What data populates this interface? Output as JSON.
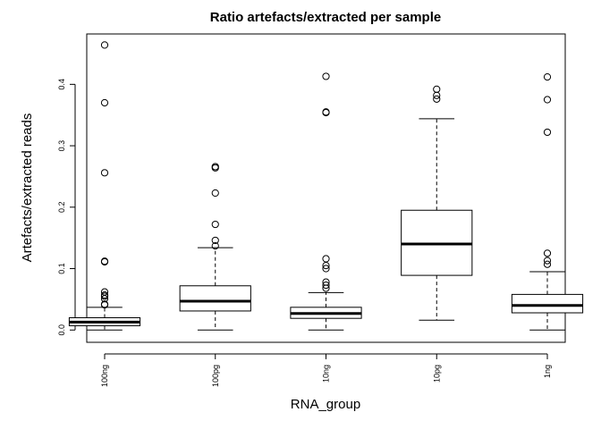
{
  "chart_data": {
    "type": "boxplot",
    "title": "Ratio artefacts/extracted per sample",
    "xlabel": "RNA_group",
    "ylabel": "Artefacts/extracted reads",
    "ylim": [
      -0.02,
      0.482
    ],
    "yticks": [
      0.0,
      0.1,
      0.2,
      0.3,
      0.4
    ],
    "ytick_labels": [
      "0.0",
      "0.1",
      "0.2",
      "0.3",
      "0.4"
    ],
    "categories": [
      "100ng",
      "100pg",
      "10ng",
      "10pg",
      "1ng"
    ],
    "boxes": [
      {
        "whisker_low": 0.0,
        "q1": 0.007,
        "median": 0.013,
        "q3": 0.02,
        "whisker_high": 0.037,
        "outliers": [
          0.041,
          0.042,
          0.051,
          0.055,
          0.057,
          0.062,
          0.111,
          0.112,
          0.256,
          0.37,
          0.464
        ]
      },
      {
        "whisker_low": 0.0,
        "q1": 0.031,
        "median": 0.047,
        "q3": 0.072,
        "whisker_high": 0.134,
        "outliers": [
          0.137,
          0.146,
          0.172,
          0.223,
          0.264,
          0.266
        ]
      },
      {
        "whisker_low": 0.0,
        "q1": 0.019,
        "median": 0.027,
        "q3": 0.037,
        "whisker_high": 0.061,
        "outliers": [
          0.068,
          0.073,
          0.078,
          0.1,
          0.105,
          0.116,
          0.354,
          0.355,
          0.413
        ]
      },
      {
        "whisker_low": 0.016,
        "q1": 0.089,
        "median": 0.14,
        "q3": 0.195,
        "whisker_high": 0.344,
        "outliers": [
          0.376,
          0.382,
          0.392
        ]
      },
      {
        "whisker_low": 0.0,
        "q1": 0.028,
        "median": 0.04,
        "q3": 0.058,
        "whisker_high": 0.095,
        "outliers": [
          0.107,
          0.113,
          0.125,
          0.322,
          0.375,
          0.412
        ]
      }
    ],
    "grid": false,
    "legend": "none"
  }
}
